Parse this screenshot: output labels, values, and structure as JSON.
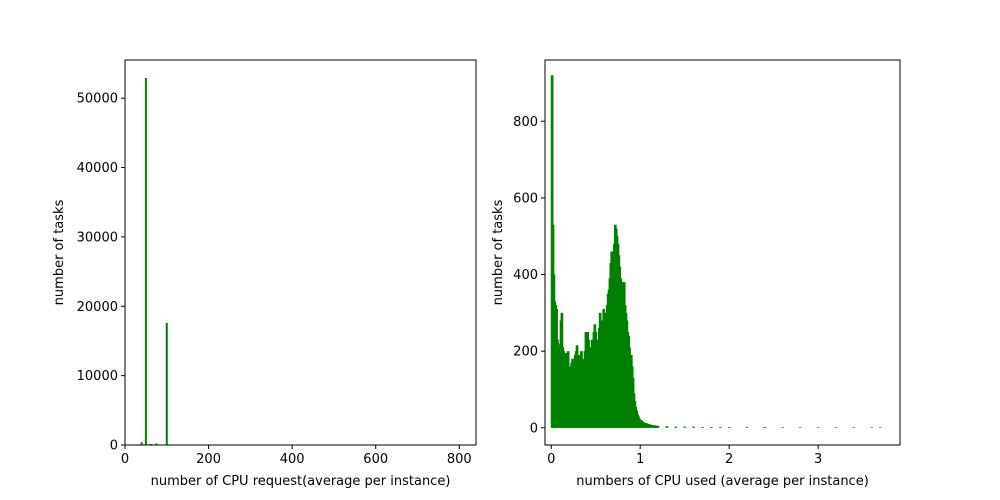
{
  "colors": {
    "bar": "#008000",
    "axis": "#000000",
    "background": "#ffffff"
  },
  "chart_data": [
    {
      "type": "bar",
      "title": "",
      "xlabel": "number of CPU request(average per instance)",
      "ylabel": "number of tasks",
      "xlim": [
        0,
        840
      ],
      "ylim": [
        0,
        55500
      ],
      "xticks": [
        0,
        200,
        400,
        600,
        800
      ],
      "yticks": [
        0,
        10000,
        20000,
        30000,
        40000,
        50000
      ],
      "grid": false,
      "legend": "none",
      "x": [
        40,
        50,
        62,
        75,
        100
      ],
      "values": [
        400,
        52900,
        150,
        200,
        17600
      ]
    },
    {
      "type": "bar",
      "title": "",
      "xlabel": "numbers of CPU used (average per instance)",
      "ylabel": "number of tasks",
      "xlim": [
        -0.07,
        3.92
      ],
      "ylim": [
        -45,
        960
      ],
      "xticks": [
        0,
        1,
        2,
        3
      ],
      "yticks": [
        0,
        200,
        400,
        600,
        800
      ],
      "grid": false,
      "legend": "none",
      "x": [
        0.01,
        0.02,
        0.03,
        0.04,
        0.05,
        0.06,
        0.07,
        0.08,
        0.09,
        0.1,
        0.11,
        0.12,
        0.13,
        0.14,
        0.15,
        0.16,
        0.17,
        0.18,
        0.19,
        0.2,
        0.21,
        0.22,
        0.23,
        0.24,
        0.25,
        0.26,
        0.27,
        0.28,
        0.29,
        0.3,
        0.31,
        0.32,
        0.33,
        0.34,
        0.35,
        0.36,
        0.37,
        0.38,
        0.39,
        0.4,
        0.41,
        0.42,
        0.43,
        0.44,
        0.45,
        0.46,
        0.47,
        0.48,
        0.49,
        0.5,
        0.51,
        0.52,
        0.53,
        0.54,
        0.55,
        0.56,
        0.57,
        0.58,
        0.59,
        0.6,
        0.61,
        0.62,
        0.63,
        0.64,
        0.65,
        0.66,
        0.67,
        0.68,
        0.69,
        0.7,
        0.71,
        0.72,
        0.73,
        0.74,
        0.75,
        0.76,
        0.77,
        0.78,
        0.79,
        0.8,
        0.81,
        0.82,
        0.83,
        0.84,
        0.85,
        0.86,
        0.87,
        0.88,
        0.89,
        0.9,
        0.91,
        0.92,
        0.93,
        0.94,
        0.95,
        0.96,
        0.97,
        0.98,
        0.99,
        1.0,
        1.01,
        1.02,
        1.03,
        1.04,
        1.05,
        1.06,
        1.07,
        1.08,
        1.09,
        1.1,
        1.11,
        1.12,
        1.13,
        1.14,
        1.15,
        1.16,
        1.17,
        1.18,
        1.19,
        1.2,
        1.3,
        1.4,
        1.5,
        1.6,
        1.7,
        1.8,
        1.9,
        2.0,
        2.2,
        2.4,
        2.6,
        2.8,
        3.0,
        3.2,
        3.4,
        3.6,
        3.7
      ],
      "values": [
        920,
        530,
        400,
        330,
        320,
        310,
        230,
        220,
        210,
        200,
        280,
        300,
        210,
        200,
        190,
        170,
        195,
        180,
        200,
        150,
        160,
        150,
        170,
        180,
        150,
        180,
        190,
        200,
        215,
        190,
        170,
        180,
        190,
        200,
        175,
        160,
        180,
        200,
        250,
        240,
        250,
        230,
        200,
        210,
        210,
        230,
        220,
        250,
        270,
        250,
        220,
        210,
        230,
        260,
        300,
        280,
        260,
        280,
        310,
        300,
        280,
        300,
        320,
        350,
        360,
        390,
        430,
        460,
        440,
        420,
        480,
        530,
        520,
        500,
        480,
        450,
        420,
        390,
        380,
        360,
        380,
        380,
        320,
        300,
        280,
        250,
        240,
        210,
        190,
        190,
        160,
        130,
        90,
        70,
        55,
        45,
        35,
        30,
        25,
        20,
        20,
        18,
        15,
        14,
        12,
        12,
        12,
        10,
        10,
        9,
        8,
        8,
        7,
        7,
        6,
        6,
        6,
        5,
        5,
        5,
        4,
        3,
        3,
        3,
        2,
        2,
        2,
        2,
        2,
        2,
        1,
        1,
        1,
        1,
        1,
        1,
        1
      ]
    }
  ]
}
